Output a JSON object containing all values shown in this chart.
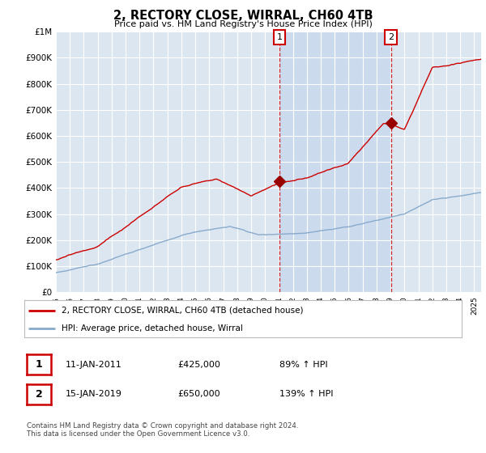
{
  "title": "2, RECTORY CLOSE, WIRRAL, CH60 4TB",
  "subtitle": "Price paid vs. HM Land Registry's House Price Index (HPI)",
  "ylim": [
    0,
    1000000
  ],
  "yticks": [
    0,
    100000,
    200000,
    300000,
    400000,
    500000,
    600000,
    700000,
    800000,
    900000,
    1000000
  ],
  "xlim_start": 1995.0,
  "xlim_end": 2025.5,
  "plot_bg_color": "#dce6f0",
  "shade_color": "#c8d8ee",
  "grid_color": "#ffffff",
  "sale1_date": 2011.04,
  "sale1_price": 425000,
  "sale2_date": 2019.04,
  "sale2_price": 650000,
  "legend_line1": "2, RECTORY CLOSE, WIRRAL, CH60 4TB (detached house)",
  "legend_line2": "HPI: Average price, detached house, Wirral",
  "table_row1": [
    "1",
    "11-JAN-2011",
    "£425,000",
    "89% ↑ HPI"
  ],
  "table_row2": [
    "2",
    "15-JAN-2019",
    "£650,000",
    "139% ↑ HPI"
  ],
  "footnote": "Contains HM Land Registry data © Crown copyright and database right 2024.\nThis data is licensed under the Open Government Licence v3.0.",
  "red_line_color": "#cc0000",
  "blue_line_color": "#88aacc",
  "vline_color": "#cc0000",
  "marker_color": "#990000"
}
